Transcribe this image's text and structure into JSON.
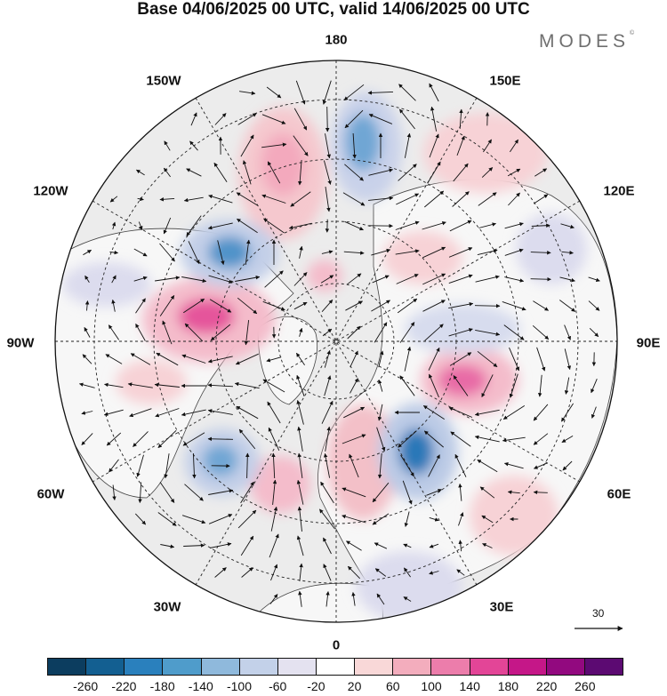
{
  "title": "Base 04/06/2025 00 UTC, valid 14/06/2025 00 UTC",
  "brand": {
    "name": "MODES",
    "mark": "©"
  },
  "longitude_labels": {
    "n180": "180",
    "w150": "150W",
    "e150": "150E",
    "w120": "120W",
    "e120": "120E",
    "w90": "90W",
    "e90": "90E",
    "w60": "60W",
    "e60": "60E",
    "w30": "30W",
    "e30": "30E",
    "zero": "0"
  },
  "reference_vector": {
    "label": "30"
  },
  "colorbar": {
    "colors": [
      "#0c3d5f",
      "#135f91",
      "#2a80bd",
      "#4f9ccb",
      "#8fb9dc",
      "#c3d1e9",
      "#e4e2f0",
      "#ffffff",
      "#f9d8d8",
      "#f3adbd",
      "#ec7dab",
      "#e34597",
      "#c51788",
      "#92097f",
      "#5c0a72"
    ],
    "tick_labels": [
      "-260",
      "-220",
      "-180",
      "-140",
      "-100",
      "-60",
      "-20",
      "20",
      "60",
      "100",
      "140",
      "180",
      "220",
      "260"
    ]
  }
}
